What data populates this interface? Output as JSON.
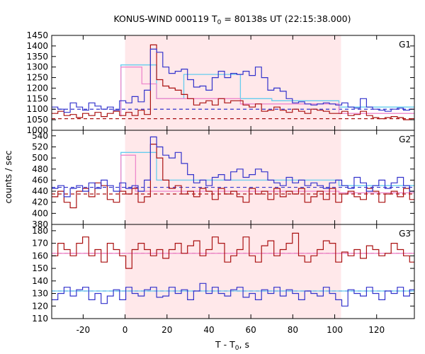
{
  "chart_data": {
    "type": "line",
    "title": "KONUS-WIND 000119 T",
    "title_sub": "0",
    "title_rest": " = 80138s UT (22:15:38.000)",
    "xlabel": "T - T",
    "xlabel_sub": "0",
    "xlabel_rest": ", s",
    "ylabel": "counts / sec",
    "xlim": [
      -35,
      138
    ],
    "x_ticks": [
      -20,
      0,
      20,
      40,
      60,
      80,
      100,
      120
    ],
    "shade": [
      0,
      103
    ],
    "colors": {
      "shade": "#ffe8ea",
      "hard": "#3333cc",
      "soft": "#aa1111",
      "hard_fit": "#66ccee",
      "soft_fit": "#ee88cc"
    },
    "panels": [
      {
        "label": "G1",
        "ylim": [
          1000,
          1450
        ],
        "y_ticks": [
          1000,
          1050,
          1100,
          1150,
          1200,
          1250,
          1300,
          1350,
          1400,
          1450
        ],
        "hard_bg": 1100,
        "soft_bg": 1055,
        "series": [
          {
            "name": "",
            "role": "hard",
            "x0": -35,
            "dx": 2.944,
            "values": [
              1110,
              1100,
              1085,
              1130,
              1110,
              1095,
              1130,
              1115,
              1100,
              1110,
              1095,
              1140,
              1130,
              1160,
              1135,
              1190,
              1385,
              1370,
              1300,
              1270,
              1280,
              1290,
              1240,
              1205,
              1210,
              1190,
              1250,
              1280,
              1250,
              1270,
              1265,
              1280,
              1260,
              1300,
              1250,
              1190,
              1200,
              1185,
              1150,
              1130,
              1135,
              1125,
              1120,
              1125,
              1130,
              1125,
              1120,
              1130,
              1110,
              1105,
              1150,
              1110,
              1100,
              1095,
              1090,
              1100,
              1105,
              1095,
              1100,
              1095,
              1100,
              1090,
              1090,
              1100,
              1095,
              1110,
              1120,
              1090,
              1095
            ]
          },
          {
            "name": "",
            "role": "soft",
            "x0": -35,
            "dx": 2.944,
            "values": [
              1080,
              1090,
              1070,
              1075,
              1060,
              1080,
              1070,
              1085,
              1065,
              1080,
              1090,
              1070,
              1085,
              1070,
              1095,
              1075,
              1405,
              1240,
              1210,
              1200,
              1190,
              1170,
              1150,
              1120,
              1130,
              1140,
              1120,
              1150,
              1130,
              1140,
              1140,
              1120,
              1110,
              1125,
              1090,
              1095,
              1110,
              1095,
              1085,
              1100,
              1090,
              1080,
              1100,
              1095,
              1090,
              1080,
              1080,
              1090,
              1070,
              1075,
              1090,
              1070,
              1060,
              1055,
              1060,
              1065,
              1060,
              1050,
              1055,
              1060,
              1060,
              1065,
              1055,
              1065,
              1050,
              1060,
              1055,
              1070,
              1060
            ]
          },
          {
            "name": "",
            "role": "hard_fit",
            "x": [
              -2,
              -2,
              15,
              15,
              28,
              28,
              55,
              55,
              70,
              70,
              102,
              102,
              138
            ],
            "y": [
              1090,
              1310,
              1310,
              1150,
              1150,
              1265,
              1265,
              1150,
              1150,
              1140,
              1140,
              1110,
              1110
            ]
          },
          {
            "name": "",
            "role": "soft_fit",
            "x": [
              -2,
              -2,
              8,
              8,
              15,
              15,
              55,
              55,
              102,
              102,
              138
            ],
            "y": [
              1065,
              1300,
              1300,
              1220,
              1220,
              1150,
              1150,
              1125,
              1125,
              1080,
              1080
            ]
          }
        ]
      },
      {
        "label": "G2",
        "ylim": [
          380,
          550
        ],
        "y_ticks": [
          380,
          400,
          420,
          440,
          460,
          480,
          500,
          520,
          540
        ],
        "hard_bg": 447,
        "soft_bg": 435,
        "series": [
          {
            "name": "",
            "role": "hard",
            "x0": -35,
            "dx": 2.944,
            "values": [
              445,
              450,
              430,
              445,
              450,
              440,
              455,
              445,
              460,
              450,
              440,
              455,
              445,
              450,
              440,
              460,
              538,
              520,
              505,
              500,
              510,
              490,
              470,
              455,
              460,
              450,
              465,
              470,
              460,
              475,
              480,
              465,
              470,
              480,
              475,
              460,
              455,
              450,
              465,
              455,
              460,
              450,
              455,
              450,
              445,
              455,
              460,
              450,
              445,
              465,
              455,
              440,
              450,
              460,
              445,
              455,
              465,
              450,
              440,
              455,
              450,
              445,
              460,
              450,
              440,
              455,
              445,
              450,
              455
            ]
          },
          {
            "name": "",
            "role": "soft",
            "x0": -35,
            "dx": 2.944,
            "values": [
              430,
              440,
              420,
              410,
              440,
              445,
              430,
              455,
              450,
              425,
              420,
              440,
              435,
              445,
              420,
              430,
              525,
              500,
              460,
              445,
              450,
              435,
              440,
              430,
              445,
              440,
              425,
              445,
              435,
              440,
              430,
              420,
              445,
              435,
              440,
              425,
              445,
              430,
              440,
              435,
              445,
              420,
              430,
              440,
              425,
              445,
              420,
              435,
              440,
              430,
              425,
              445,
              440,
              420,
              435,
              440,
              430,
              445,
              425,
              435,
              440,
              420,
              440,
              430,
              445,
              425,
              440,
              430,
              420
            ]
          },
          {
            "name": "",
            "role": "hard_fit",
            "x": [
              -2,
              -2,
              15,
              15,
              102,
              102,
              138
            ],
            "y": [
              448,
              510,
              510,
              460,
              460,
              450,
              450
            ]
          },
          {
            "name": "",
            "role": "soft_fit",
            "x": [
              -2,
              -2,
              5,
              5,
              102,
              102,
              138
            ],
            "y": [
              440,
              505,
              505,
              440,
              440,
              437,
              437
            ]
          }
        ]
      },
      {
        "label": "G3",
        "ylim": [
          110,
          185
        ],
        "y_ticks": [
          110,
          120,
          130,
          140,
          150,
          160,
          170,
          180
        ],
        "hard_bg": 132,
        "soft_bg": 162,
        "series": [
          {
            "name": "",
            "role": "hard",
            "x0": -35,
            "dx": 2.944,
            "values": [
              125,
              130,
              135,
              128,
              133,
              135,
              125,
              130,
              122,
              128,
              133,
              125,
              135,
              130,
              128,
              133,
              135,
              127,
              128,
              135,
              130,
              133,
              125,
              132,
              138,
              130,
              135,
              130,
              128,
              133,
              135,
              127,
              130,
              125,
              133,
              130,
              135,
              128,
              133,
              130,
              125,
              132,
              130,
              128,
              135,
              130,
              125,
              120,
              133,
              130,
              128,
              135,
              130,
              125,
              132,
              130,
              135,
              128,
              133,
              130,
              127,
              132,
              130,
              128,
              125,
              133,
              130,
              135,
              128
            ]
          },
          {
            "name": "",
            "role": "soft",
            "x0": -35,
            "dx": 2.944,
            "values": [
              160,
              170,
              165,
              160,
              170,
              175,
              160,
              165,
              155,
              170,
              165,
              160,
              150,
              165,
              170,
              165,
              160,
              165,
              158,
              165,
              170,
              162,
              168,
              172,
              160,
              165,
              175,
              170,
              155,
              160,
              165,
              175,
              160,
              155,
              168,
              172,
              160,
              165,
              170,
              178,
              160,
              155,
              160,
              165,
              172,
              170,
              155,
              163,
              160,
              165,
              158,
              168,
              165,
              160,
              162,
              170,
              165,
              160,
              155,
              162,
              168,
              172,
              160,
              155,
              170,
              165,
              160,
              155,
              160
            ]
          },
          {
            "name": "",
            "role": "hard_fit",
            "x": [
              -35,
              138
            ],
            "y": [
              132,
              132
            ]
          },
          {
            "name": "",
            "role": "soft_fit",
            "x": [
              -35,
              138
            ],
            "y": [
              162,
              162
            ]
          }
        ]
      }
    ]
  }
}
